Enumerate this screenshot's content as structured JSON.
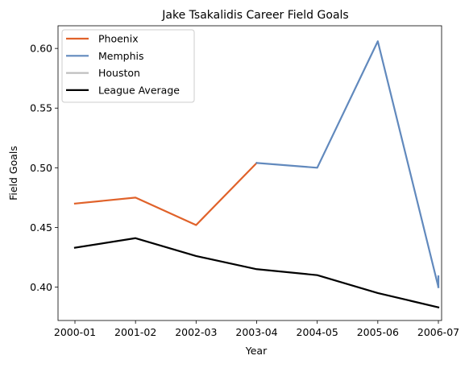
{
  "chart_data": {
    "type": "line",
    "title": "Jake Tsakalidis Career Field Goals",
    "xlabel": "Year",
    "ylabel": "Field Goals",
    "categories": [
      "2000-01",
      "2001-02",
      "2002-03",
      "2003-04",
      "2004-05",
      "2005-06",
      "2006-07"
    ],
    "ylim": [
      0.372,
      0.619
    ],
    "yticks": [
      0.4,
      0.45,
      0.5,
      0.55,
      0.6
    ],
    "ytick_labels": [
      "0.40",
      "0.45",
      "0.50",
      "0.55",
      "0.60"
    ],
    "legend_position": "top-left",
    "grid": false,
    "series": [
      {
        "name": "Phoenix",
        "color": "#e0622a",
        "points": [
          {
            "x": 0,
            "y": 0.47
          },
          {
            "x": 1,
            "y": 0.475
          },
          {
            "x": 2,
            "y": 0.452
          },
          {
            "x": 3,
            "y": 0.504
          }
        ]
      },
      {
        "name": "Memphis",
        "color": "#6189bd",
        "points": [
          {
            "x": 3,
            "y": 0.504
          },
          {
            "x": 4,
            "y": 0.5
          },
          {
            "x": 5,
            "y": 0.606
          },
          {
            "x": 6,
            "y": 0.4
          }
        ]
      },
      {
        "name": "Houston",
        "color": "#bfbfbf",
        "points": [
          {
            "x": 6,
            "y": 0.4
          },
          {
            "x": 6,
            "y": 0.409
          }
        ]
      },
      {
        "name": "League Average",
        "color": "#000000",
        "points": [
          {
            "x": 0,
            "y": 0.433
          },
          {
            "x": 1,
            "y": 0.441
          },
          {
            "x": 2,
            "y": 0.426
          },
          {
            "x": 3,
            "y": 0.415
          },
          {
            "x": 4,
            "y": 0.41
          },
          {
            "x": 5,
            "y": 0.395
          },
          {
            "x": 6,
            "y": 0.383
          }
        ]
      }
    ],
    "overlay_segment": {
      "color": "#6189bd",
      "points": [
        {
          "x": 6,
          "y": 0.4
        },
        {
          "x": 6,
          "y": 0.409
        }
      ]
    }
  }
}
